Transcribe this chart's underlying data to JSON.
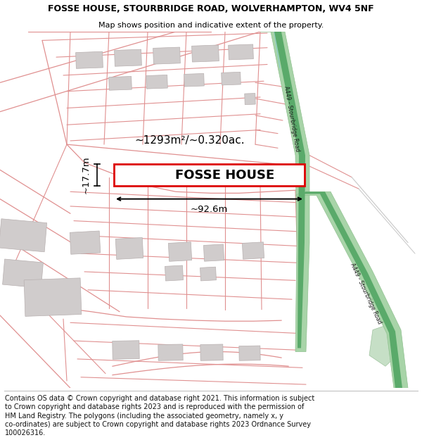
{
  "title_line1": "FOSSE HOUSE, STOURBRIDGE ROAD, WOLVERHAMPTON, WV4 5NF",
  "title_line2": "Map shows position and indicative extent of the property.",
  "property_label": "FOSSE HOUSE",
  "area_label": "~1293m²/~0.320ac.",
  "width_label": "~92.6m",
  "height_label": "~17.7m",
  "road_label": "A449 - Stourbridge Road",
  "footer_lines": [
    "Contains OS data © Crown copyright and database right 2021. This information is subject",
    "to Crown copyright and database rights 2023 and is reproduced with the permission of",
    "HM Land Registry. The polygons (including the associated geometry, namely x, y",
    "co-ordinates) are subject to Crown copyright and database rights 2023 Ordnance Survey",
    "100026316."
  ],
  "map_bg": "#f7f4f4",
  "road_green_outer": "#a8d4a8",
  "road_green_inner": "#5aaa6a",
  "boundary_color": "#e09090",
  "building_fill": "#d0cccc",
  "building_edge": "#b8b0b0",
  "plot_outline_color": "#dd0000",
  "title_fontsize": 9.0,
  "subtitle_fontsize": 8.0,
  "footer_fontsize": 7.0,
  "property_fontsize": 13,
  "area_fontsize": 11,
  "dim_fontsize": 9.5
}
